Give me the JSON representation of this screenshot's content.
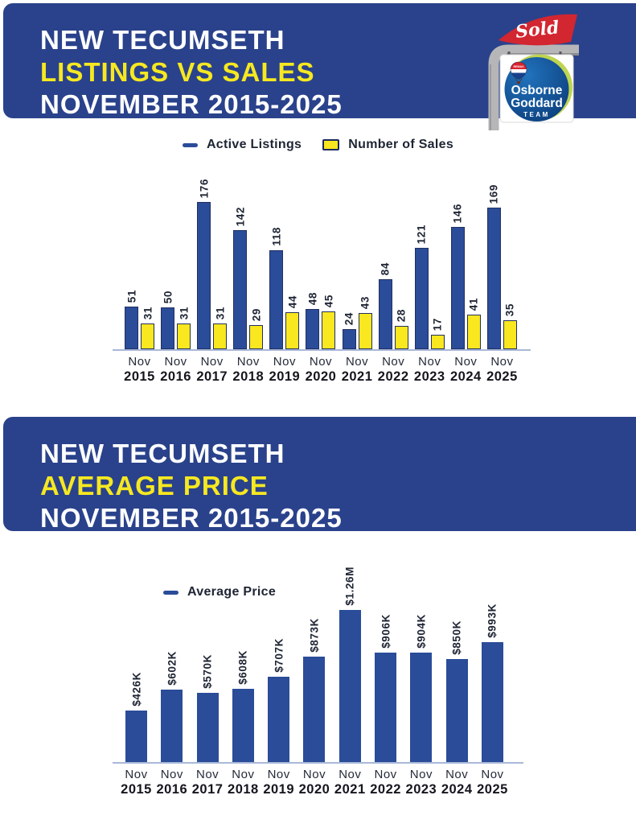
{
  "header1": {
    "line1": "NEW TECUMSETH",
    "line2": "LISTINGS VS SALES",
    "line3": "NOVEMBER 2015-2025"
  },
  "header2": {
    "line1": "NEW TECUMSETH",
    "line2": "AVERAGE PRICE",
    "line3": "NOVEMBER 2015-2025"
  },
  "logo": {
    "flag_text": "Sold",
    "balloon_text": "REMAX",
    "team_line1": "Osborne",
    "team_line2": "Goddard",
    "team_line3": "TEAM"
  },
  "colors": {
    "band_blue": "#2a428b",
    "bar_blue": "#2a4c99",
    "sales_yellow": "#f9e71f",
    "bar_border_navy": "#223061",
    "axis_line": "#a9b8d9",
    "accent_yellow": "#f6e821",
    "flag_red": "#d22630"
  },
  "chart_data": [
    {
      "type": "bar",
      "title": "New Tecumseth Listings vs Sales November 2015-2025",
      "categories": [
        "Nov 2015",
        "Nov 2016",
        "Nov 2017",
        "Nov 2018",
        "Nov 2019",
        "Nov 2020",
        "Nov 2021",
        "Nov 2022",
        "Nov 2023",
        "Nov 2024",
        "Nov 2025"
      ],
      "series": [
        {
          "name": "Active Listings",
          "color": "#2a4c99",
          "values": [
            51,
            50,
            176,
            142,
            118,
            48,
            24,
            84,
            121,
            146,
            169
          ]
        },
        {
          "name": "Number of Sales",
          "color": "#f9e71f",
          "values": [
            31,
            31,
            31,
            29,
            44,
            45,
            43,
            28,
            17,
            41,
            35
          ]
        }
      ],
      "legend_position": "top",
      "grid": false,
      "value_labels": "rotated-90-above-bars",
      "ylim": [
        0,
        176
      ]
    },
    {
      "type": "bar",
      "title": "New Tecumseth Average Price November 2015-2025",
      "categories": [
        "Nov 2015",
        "Nov 2016",
        "Nov 2017",
        "Nov 2018",
        "Nov 2019",
        "Nov 2020",
        "Nov 2021",
        "Nov 2022",
        "Nov 2023",
        "Nov 2024",
        "Nov 2025"
      ],
      "series": [
        {
          "name": "Average Price",
          "color": "#2a4c99",
          "values": [
            426000,
            602000,
            570000,
            608000,
            707000,
            873000,
            1260000,
            906000,
            904000,
            850000,
            993000
          ],
          "labels": [
            "$426K",
            "$602K",
            "$570K",
            "$608K",
            "$707K",
            "$873K",
            "$1.26M",
            "$906K",
            "$904K",
            "$850K",
            "$993K"
          ]
        }
      ],
      "legend_position": "top",
      "grid": false,
      "value_labels": "rotated-90-above-bars",
      "ylim": [
        0,
        1260000
      ]
    }
  ]
}
